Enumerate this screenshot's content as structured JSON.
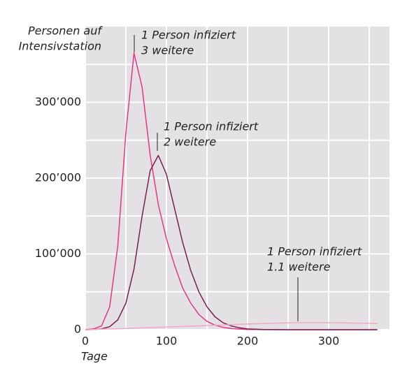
{
  "chart_data": {
    "type": "line",
    "y_label_lines": [
      "Personen auf",
      "Intensivstation"
    ],
    "x_label": "Tage",
    "x": [
      0,
      10,
      20,
      30,
      40,
      50,
      60,
      70,
      80,
      90,
      100,
      110,
      120,
      130,
      140,
      150,
      160,
      170,
      180,
      190,
      200,
      210,
      220,
      230,
      240,
      250,
      260,
      270,
      280,
      290,
      300,
      310,
      320,
      330,
      340,
      350,
      360
    ],
    "series": [
      {
        "name": "1 Person infiziert 3 weitere",
        "color": "#e6358a",
        "values": [
          0,
          1000,
          5000,
          30000,
          110000,
          260000,
          365000,
          320000,
          230000,
          165000,
          120000,
          85000,
          55000,
          35000,
          20000,
          11000,
          6000,
          3000,
          1500,
          800,
          400,
          200,
          100,
          0,
          0,
          0,
          0,
          0,
          0,
          0,
          0,
          0,
          0,
          0,
          0,
          0,
          0
        ]
      },
      {
        "name": "1 Person infiziert 2 weitere",
        "color": "#7a1f50",
        "values": [
          0,
          200,
          1000,
          4000,
          13000,
          35000,
          80000,
          150000,
          210000,
          230000,
          205000,
          160000,
          115000,
          78000,
          50000,
          30000,
          17000,
          9000,
          5000,
          2500,
          1000,
          600,
          300,
          150,
          50,
          0,
          0,
          0,
          0,
          0,
          0,
          0,
          0,
          0,
          0,
          0,
          0
        ]
      },
      {
        "name": "1 Person infiziert 1.1 weitere",
        "color": "#f2a9c9",
        "values": [
          0,
          300,
          600,
          1000,
          1300,
          1700,
          2000,
          2400,
          2800,
          3100,
          3500,
          3900,
          4300,
          4700,
          5100,
          5500,
          5900,
          6300,
          6700,
          7100,
          7500,
          7800,
          8100,
          8400,
          8700,
          9000,
          9200,
          9300,
          9300,
          9300,
          9200,
          9100,
          8900,
          8700,
          8500,
          8300,
          8100
        ]
      }
    ],
    "annotations": [
      {
        "lines": [
          "1 Person infiziert",
          "3 weitere"
        ]
      },
      {
        "lines": [
          "1 Person infiziert",
          "2 weitere"
        ]
      },
      {
        "lines": [
          "1 Person infiziert",
          "1.1 weitere"
        ]
      }
    ],
    "xlim": [
      0,
      375
    ],
    "ylim": [
      0,
      400000
    ],
    "xticks": [
      0,
      100,
      200,
      300
    ],
    "x_minor_grid": [
      50,
      150,
      250,
      350
    ],
    "yticks": [
      0,
      {
        "value": 100000,
        "label": "100’000"
      },
      {
        "value": 200000,
        "label": "200’000"
      },
      {
        "value": 300000,
        "label": "300’000"
      }
    ],
    "y_minor_grid": [
      50000,
      150000,
      250000,
      350000
    ],
    "grid": true
  }
}
